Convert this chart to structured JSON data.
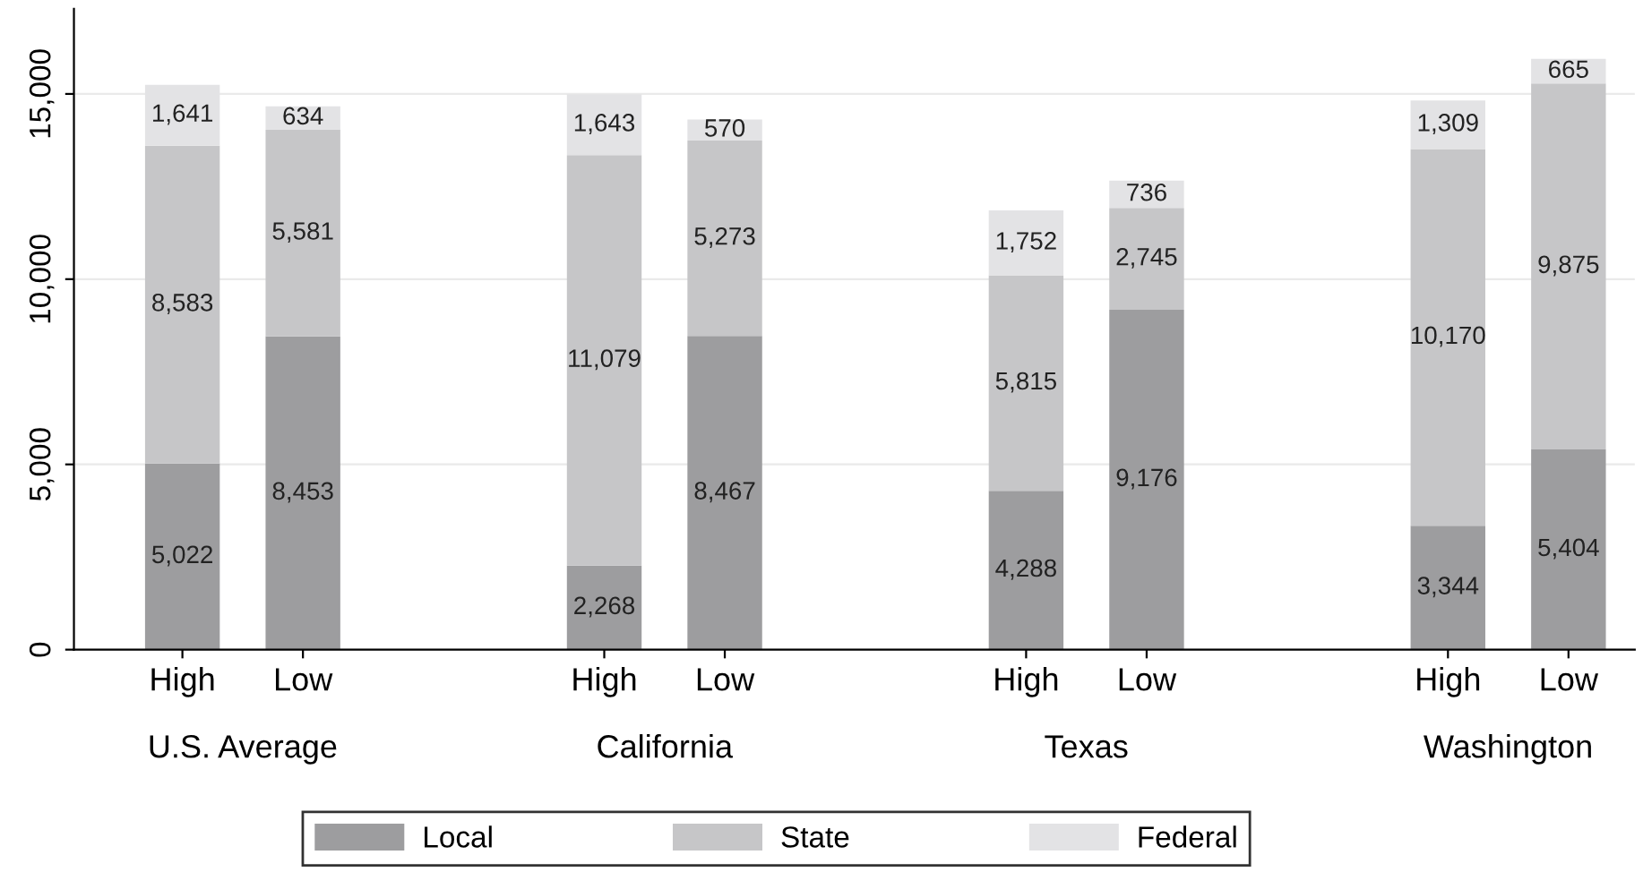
{
  "chart_data": {
    "type": "bar",
    "stacked": true,
    "categories": [
      "High",
      "Low",
      "High",
      "Low",
      "High",
      "Low",
      "High",
      "Low"
    ],
    "series": [
      {
        "name": "Local",
        "color": "#9d9d9f",
        "values": [
          5022,
          8453,
          2268,
          8467,
          4288,
          9176,
          3344,
          5404
        ],
        "value_labels": [
          "5,022",
          "8,453",
          "2,268",
          "8,467",
          "4,288",
          "9,176",
          "3,344",
          "5,404"
        ]
      },
      {
        "name": "State",
        "color": "#c6c6c8",
        "values": [
          8583,
          5581,
          11079,
          5273,
          5815,
          2745,
          10170,
          9875
        ],
        "value_labels": [
          "8,583",
          "5,581",
          "11,079",
          "5,273",
          "5,815",
          "2,745",
          "10,170",
          "9,875"
        ]
      },
      {
        "name": "Federal",
        "color": "#e3e3e5",
        "values": [
          1641,
          634,
          1643,
          570,
          1752,
          736,
          1309,
          665
        ],
        "value_labels": [
          "1,641",
          "634",
          "1,643",
          "570",
          "1,752",
          "736",
          "1,309",
          "665"
        ]
      }
    ],
    "annotations": [
      "U.S. Average",
      "California",
      "Texas",
      "Washington"
    ],
    "ylim": [
      0,
      17300
    ],
    "yticks": [
      0,
      {
        "value": 5000,
        "label": "5,000"
      },
      {
        "value": 10000,
        "label": "10,000"
      },
      {
        "value": 15000,
        "label": "15,000"
      }
    ],
    "grid": "y",
    "legend": "bottom"
  }
}
